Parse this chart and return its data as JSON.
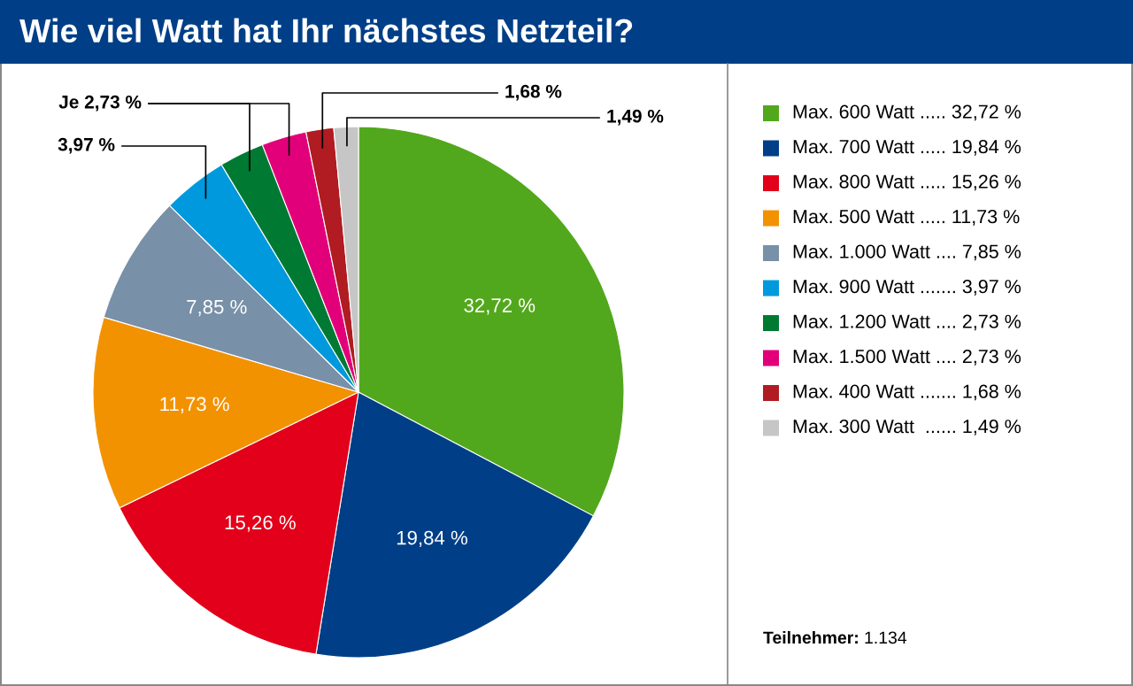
{
  "chart_data": {
    "type": "pie",
    "title": "Wie viel Watt hat Ihr nächstes Netzteil?",
    "categories": [
      "Max. 600 Watt ..... 32,72 %",
      "Max. 700 Watt ..... 19,84 %",
      "Max. 800 Watt ..... 15,26 %",
      "Max. 500 Watt ..... 11,73 %",
      "Max. 1.000 Watt .... 7,85 %",
      "Max. 900 Watt ....... 3,97 %",
      "Max. 1.200 Watt .... 2,73 %",
      "Max. 1.500 Watt .... 2,73 %",
      "Max. 400 Watt ....... 1,68 %",
      "Max. 300 Watt  ...... 1,49 %"
    ],
    "values": [
      32.72,
      19.84,
      15.26,
      11.73,
      7.85,
      3.97,
      2.73,
      2.73,
      1.68,
      1.49
    ],
    "colors": [
      "#52a81c",
      "#003f87",
      "#e2001a",
      "#f39200",
      "#7890a8",
      "#0099dd",
      "#007a33",
      "#e2007a",
      "#b01c22",
      "#c6c6c6"
    ],
    "value_labels": [
      "32,72 %",
      "19,84 %",
      "15,26 %",
      "11,73 %",
      "7,85 %",
      "3,97 %",
      "Je 2,73 %",
      null,
      "1,68 %",
      "1,49 %"
    ],
    "legend": "right",
    "annotations": [
      "Teilnehmer: 1.134"
    ]
  }
}
